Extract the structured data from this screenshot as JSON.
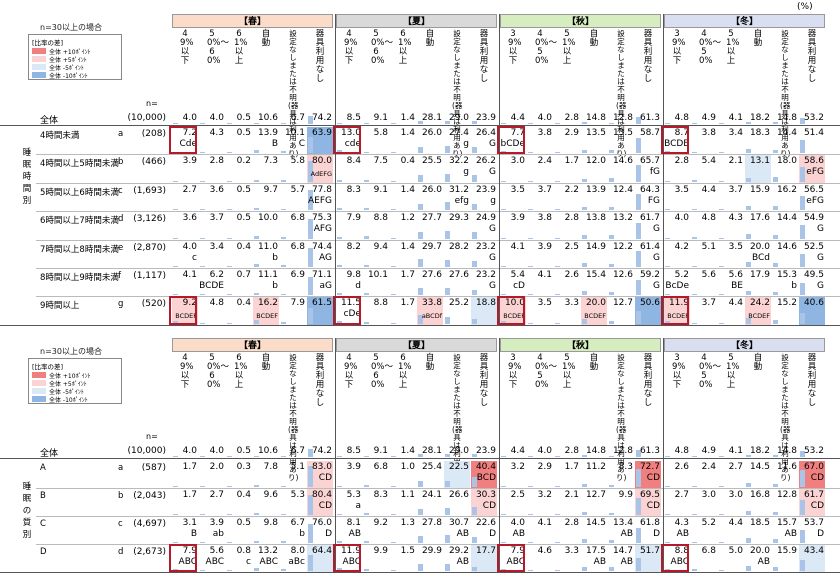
{
  "unit_label": "(%)",
  "sections": [
    {
      "note": "n=30以上の場合",
      "legend": {
        "title": "[比率の差]",
        "items": [
          {
            "label": "全体 +10ﾎﾟｲﾝﾄ",
            "color": "#f08080"
          },
          {
            "label": "全体 +5ﾎﾟｲﾝﾄ",
            "color": "#fbd3d3"
          },
          {
            "label": "全体 -5ﾎﾟｲﾝﾄ",
            "color": "#dbe8f6"
          },
          {
            "label": "全体 -10ﾎﾟｲﾝﾄ",
            "color": "#8fb6e3"
          }
        ]
      },
      "n_label": "n=",
      "group_label": "睡眠時間別",
      "seasons": [
        {
          "label": "【春】",
          "color": "#fbdcc8"
        },
        {
          "label": "【夏】",
          "color": "#d9d9d9"
        },
        {
          "label": "【秋】",
          "color": "#d6eebf"
        },
        {
          "label": "【冬】",
          "color": "#d9dff0"
        }
      ],
      "col_headers": [
        [
          "49%以下",
          "50%〜60%",
          "61%以上",
          "自動",
          "設定なしまたは不明(器具は利用あり)",
          "器具利用なし"
        ],
        [
          "49%以下",
          "50%〜60%",
          "61%以上",
          "自動",
          "設定なしまたは不明(器具は利用あり)",
          "器具利用なし"
        ],
        [
          "39%以下",
          "40%〜50%",
          "51%以上",
          "自動",
          "設定なしまたは不明(器具は利用あり)",
          "器具利用なし"
        ],
        [
          "39%以下",
          "40%〜50%",
          "51%以上",
          "自動",
          "設定なしまたは不明(器具は利用あり)",
          "器具利用なし"
        ]
      ],
      "total": {
        "label": "全体",
        "n": "(10,000)",
        "values": [
          "4.0",
          "4.0",
          "0.5",
          "10.6",
          "6.7",
          "74.2",
          "8.5",
          "9.1",
          "1.4",
          "28.1",
          "29.0",
          "23.9",
          "4.4",
          "4.0",
          "2.8",
          "14.8",
          "12.8",
          "61.3",
          "4.8",
          "4.9",
          "4.1",
          "18.2",
          "14.8",
          "53.2"
        ]
      },
      "rows": [
        {
          "label": "4時間未満",
          "letter": "a",
          "n": "(208)",
          "values": [
            "7.2",
            "4.3",
            "0.5",
            "13.9",
            "10.1",
            "63.9",
            "13.0",
            "5.8",
            "1.4",
            "26.0",
            "27.4",
            "26.4",
            "7.7",
            "3.8",
            "2.9",
            "13.5",
            "13.5",
            "58.7",
            "8.7",
            "3.8",
            "3.4",
            "18.3",
            "14.4",
            "51.4"
          ],
          "sig": [
            "Cde",
            "",
            "",
            "B",
            "C",
            "",
            "cde",
            "",
            "",
            "",
            "g",
            "G",
            "bCDe",
            "",
            "",
            "",
            "",
            "",
            "BCDE",
            "",
            "",
            "",
            "",
            ""
          ]
        },
        {
          "label": "4時間以上5時間未満",
          "letter": "b",
          "n": "(466)",
          "values": [
            "3.9",
            "2.8",
            "0.2",
            "7.3",
            "5.8",
            "80.0",
            "8.4",
            "7.5",
            "0.4",
            "25.5",
            "32.2",
            "26.2",
            "3.0",
            "2.4",
            "1.7",
            "12.0",
            "14.6",
            "65.7",
            "2.8",
            "5.4",
            "2.1",
            "13.1",
            "18.0",
            "58.6"
          ],
          "sig": [
            "",
            "",
            "",
            "",
            "",
            "AdEFG",
            "",
            "",
            "",
            "",
            "g",
            "G",
            "",
            "",
            "",
            "",
            "",
            "fG",
            "",
            "",
            "",
            "",
            "",
            "eFG"
          ]
        },
        {
          "label": "5時間以上6時間未満",
          "letter": "c",
          "n": "(1,693)",
          "values": [
            "2.7",
            "3.6",
            "0.5",
            "9.7",
            "5.7",
            "77.8",
            "8.3",
            "9.1",
            "1.4",
            "26.0",
            "31.2",
            "23.9",
            "3.5",
            "3.7",
            "2.2",
            "13.9",
            "12.4",
            "64.3",
            "3.5",
            "4.4",
            "3.7",
            "15.9",
            "16.2",
            "56.5"
          ],
          "sig": [
            "",
            "",
            "",
            "",
            "",
            "AEFG",
            "",
            "",
            "",
            "",
            "efg",
            "g",
            "",
            "",
            "",
            "",
            "",
            "FG",
            "",
            "",
            "",
            "",
            "",
            "eFG"
          ]
        },
        {
          "label": "6時間以上7時間未満",
          "letter": "d",
          "n": "(3,126)",
          "values": [
            "3.6",
            "3.7",
            "0.5",
            "10.0",
            "6.8",
            "75.3",
            "7.9",
            "8.8",
            "1.2",
            "27.7",
            "29.3",
            "24.9",
            "3.9",
            "3.8",
            "2.8",
            "13.8",
            "13.2",
            "61.7",
            "4.0",
            "4.8",
            "4.3",
            "17.6",
            "14.4",
            "54.9"
          ],
          "sig": [
            "",
            "",
            "",
            "",
            "",
            "AFG",
            "",
            "",
            "",
            "",
            "",
            "G",
            "",
            "",
            "",
            "",
            "",
            "G",
            "",
            "",
            "",
            "",
            "",
            "G"
          ]
        },
        {
          "label": "7時間以上8時間未満",
          "letter": "e",
          "n": "(2,870)",
          "values": [
            "4.0",
            "3.4",
            "0.4",
            "11.0",
            "6.8",
            "74.4",
            "8.2",
            "9.4",
            "1.4",
            "29.7",
            "28.2",
            "23.2",
            "4.1",
            "3.9",
            "2.5",
            "14.9",
            "12.2",
            "61.4",
            "4.2",
            "5.1",
            "3.5",
            "20.0",
            "14.6",
            "52.5"
          ],
          "sig": [
            "c",
            "",
            "",
            "b",
            "",
            "AG",
            "",
            "",
            "",
            "",
            "",
            "G",
            "",
            "",
            "",
            "",
            "",
            "G",
            "",
            "",
            "",
            "BCd",
            "",
            "G"
          ]
        },
        {
          "label": "8時間以上9時間未満",
          "letter": "f",
          "n": "(1,117)",
          "values": [
            "4.1",
            "6.2",
            "0.7",
            "11.1",
            "6.9",
            "71.1",
            "9.8",
            "10.1",
            "1.7",
            "27.6",
            "27.6",
            "23.2",
            "5.4",
            "4.1",
            "2.6",
            "15.4",
            "12.6",
            "59.2",
            "5.2",
            "5.6",
            "5.6",
            "17.9",
            "15.3",
            "49.5"
          ],
          "sig": [
            "",
            "BCDE",
            "",
            "b",
            "",
            "aG",
            "d",
            "",
            "",
            "",
            "",
            "G",
            "cD",
            "",
            "",
            "",
            "",
            "G",
            "BcDe",
            "",
            "BE",
            "",
            "b",
            "G"
          ]
        },
        {
          "label": "9時間以上",
          "letter": "g",
          "n": "(520)",
          "values": [
            "9.2",
            "4.8",
            "0.4",
            "16.2",
            "7.9",
            "61.5",
            "11.5",
            "8.8",
            "1.7",
            "33.8",
            "25.2",
            "18.8",
            "10.0",
            "3.5",
            "3.3",
            "20.0",
            "12.7",
            "50.6",
            "11.9",
            "3.7",
            "4.4",
            "24.2",
            "15.2",
            "40.6"
          ],
          "sig": [
            "BCDEF",
            "",
            "",
            "BCDEF",
            "",
            "",
            "cDe",
            "",
            "",
            "aBCDf",
            "",
            "",
            "BCDEF",
            "",
            "",
            "BCDEF",
            "",
            "",
            "BCDEF",
            "",
            "",
            "BCDEF",
            "",
            ""
          ]
        }
      ]
    },
    {
      "note": "n=30以上の場合",
      "legend": {
        "title": "[比率の差]",
        "items": [
          {
            "label": "全体 +10ﾎﾟｲﾝﾄ",
            "color": "#f08080"
          },
          {
            "label": "全体 +5ﾎﾟｲﾝﾄ",
            "color": "#fbd3d3"
          },
          {
            "label": "全体 -5ﾎﾟｲﾝﾄ",
            "color": "#dbe8f6"
          },
          {
            "label": "全体 -10ﾎﾟｲﾝﾄ",
            "color": "#8fb6e3"
          }
        ]
      },
      "n_label": "n=",
      "group_label": "睡眠の質別",
      "seasons": [
        {
          "label": "【春】",
          "color": "#fbdcc8"
        },
        {
          "label": "【夏】",
          "color": "#d9d9d9"
        },
        {
          "label": "【秋】",
          "color": "#d6eebf"
        },
        {
          "label": "【冬】",
          "color": "#d9dff0"
        }
      ],
      "col_headers": [
        [
          "49%以下",
          "50%〜60%",
          "61%以上",
          "自動",
          "設定なしまたは不明(器具は利用あり)",
          "器具利用なし"
        ],
        [
          "49%以下",
          "50%〜60%",
          "61%以上",
          "自動",
          "設定なしまたは不明(器具は利用あり)",
          "器具利用なし"
        ],
        [
          "39%以下",
          "40%〜50%",
          "51%以上",
          "自動",
          "設定なしまたは不明(器具は利用あり)",
          "器具利用なし"
        ],
        [
          "39%以下",
          "40%〜50%",
          "51%以上",
          "自動",
          "設定なしまたは不明(器具は利用あり)",
          "器具利用なし"
        ]
      ],
      "total": {
        "label": "全体",
        "n": "(10,000)",
        "values": [
          "4.0",
          "4.0",
          "0.5",
          "10.6",
          "6.7",
          "74.2",
          "8.5",
          "9.1",
          "1.4",
          "28.1",
          "29.0",
          "23.9",
          "4.4",
          "4.0",
          "2.8",
          "14.8",
          "12.8",
          "61.3",
          "4.8",
          "4.9",
          "4.1",
          "18.2",
          "14.8",
          "53.2"
        ]
      },
      "rows": [
        {
          "label": "A",
          "letter": "a",
          "n": "(587)",
          "values": [
            "1.7",
            "2.0",
            "0.3",
            "7.8",
            "5.1",
            "83.0",
            "3.9",
            "6.8",
            "1.0",
            "25.4",
            "22.5",
            "40.4",
            "3.2",
            "2.9",
            "1.7",
            "11.2",
            "8.3",
            "72.7",
            "2.6",
            "2.4",
            "2.7",
            "14.5",
            "11.6",
            "67.0"
          ],
          "sig": [
            "",
            "",
            "",
            "",
            "",
            "CD",
            "",
            "",
            "",
            "",
            "",
            "BCD",
            "",
            "",
            "",
            "",
            "",
            "CD",
            "",
            "",
            "",
            "",
            "",
            "CD"
          ]
        },
        {
          "label": "B",
          "letter": "b",
          "n": "(2,043)",
          "values": [
            "1.7",
            "2.7",
            "0.4",
            "9.6",
            "5.3",
            "80.4",
            "5.3",
            "8.3",
            "1.1",
            "24.1",
            "26.6",
            "30.3",
            "2.5",
            "3.2",
            "2.1",
            "12.7",
            "9.9",
            "69.5",
            "2.7",
            "3.0",
            "3.0",
            "16.8",
            "12.8",
            "61.7"
          ],
          "sig": [
            "",
            "",
            "",
            "",
            "",
            "CD",
            "a",
            "",
            "",
            "",
            "",
            "CD",
            "",
            "",
            "",
            "",
            "",
            "CD",
            "",
            "",
            "",
            "",
            "",
            "CD"
          ]
        },
        {
          "label": "C",
          "letter": "c",
          "n": "(4,697)",
          "values": [
            "3.1",
            "3.9",
            "0.5",
            "9.8",
            "6.7",
            "76.0",
            "8.1",
            "9.2",
            "1.3",
            "27.8",
            "30.7",
            "22.6",
            "4.0",
            "4.1",
            "2.8",
            "14.5",
            "13.4",
            "61.8",
            "4.3",
            "5.2",
            "4.4",
            "18.5",
            "15.7",
            "53.7"
          ],
          "sig": [
            "B",
            "ab",
            "",
            "",
            "b",
            "D",
            "AB",
            "",
            "",
            "",
            "AB",
            "D",
            "AB",
            "",
            "",
            "",
            "AB",
            "D",
            "AB",
            "",
            "",
            "",
            "AB",
            "D"
          ]
        },
        {
          "label": "D",
          "letter": "d",
          "n": "(2,673)",
          "values": [
            "7.9",
            "5.6",
            "0.8",
            "13.2",
            "8.0",
            "64.4",
            "11.9",
            "9.9",
            "1.5",
            "29.9",
            "29.2",
            "17.7",
            "7.9",
            "4.6",
            "3.3",
            "17.5",
            "14.7",
            "51.7",
            "8.8",
            "6.8",
            "5.0",
            "20.0",
            "15.9",
            "43.4"
          ],
          "sig": [
            "ABC",
            "ABC",
            "c",
            "ABC",
            "aBc",
            "",
            "ABC",
            "",
            "",
            "",
            "AB",
            "",
            "ABC",
            "",
            "",
            "AB",
            "AB",
            "",
            "ABC",
            "",
            "",
            "AB",
            "",
            ""
          ]
        }
      ]
    }
  ]
}
